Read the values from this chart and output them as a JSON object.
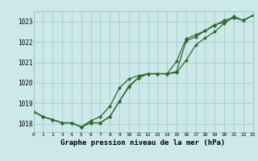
{
  "title": "Graphe pression niveau de la mer (hPa)",
  "background_color": "#cce8e8",
  "grid_color": "#aacccc",
  "line_color": "#2d6b2d",
  "xlim": [
    0,
    23
  ],
  "ylim": [
    1017.6,
    1023.5
  ],
  "yticks": [
    1018,
    1019,
    1020,
    1021,
    1022,
    1023
  ],
  "xticks": [
    0,
    1,
    2,
    3,
    4,
    5,
    6,
    7,
    8,
    9,
    10,
    11,
    12,
    13,
    14,
    15,
    16,
    17,
    18,
    19,
    20,
    21,
    22,
    23
  ],
  "xtick_labels": [
    "0",
    "1",
    "2",
    "3",
    "4",
    "5",
    "6",
    "7",
    "8",
    "9",
    "10",
    "11",
    "12",
    "13",
    "14",
    "15",
    "16",
    "17",
    "18",
    "19",
    "20",
    "21",
    "22",
    "23"
  ],
  "series": [
    [
      1018.6,
      1018.35,
      1018.2,
      1018.05,
      1018.05,
      1017.85,
      1018.05,
      1018.05,
      1018.35,
      1019.1,
      1019.8,
      1020.25,
      1020.45,
      1020.45,
      1020.45,
      1020.5,
      1021.1,
      1021.85,
      1022.2,
      1022.5,
      1022.9,
      1023.25,
      1023.05,
      1023.3
    ],
    [
      1018.6,
      1018.35,
      1018.2,
      1018.05,
      1018.05,
      1017.85,
      1018.15,
      1018.35,
      1018.85,
      1019.75,
      1020.2,
      1020.35,
      1020.45,
      1020.45,
      1020.45,
      1020.55,
      1022.05,
      1022.25,
      1022.55,
      1022.8,
      1023.05,
      1023.2,
      1023.05,
      1023.3
    ],
    [
      1018.6,
      1018.35,
      1018.2,
      1018.05,
      1018.05,
      1017.85,
      1018.05,
      1018.05,
      1018.35,
      1019.1,
      1019.85,
      1020.25,
      1020.45,
      1020.45,
      1020.45,
      1021.05,
      1022.15,
      1022.35,
      1022.55,
      1022.85,
      1022.95,
      1023.2,
      1023.05,
      1023.3
    ]
  ],
  "ylabel_fontsize": 6,
  "xlabel_fontsize": 6,
  "title_fontsize": 6.5,
  "marker_size": 2.2,
  "line_width": 0.9
}
